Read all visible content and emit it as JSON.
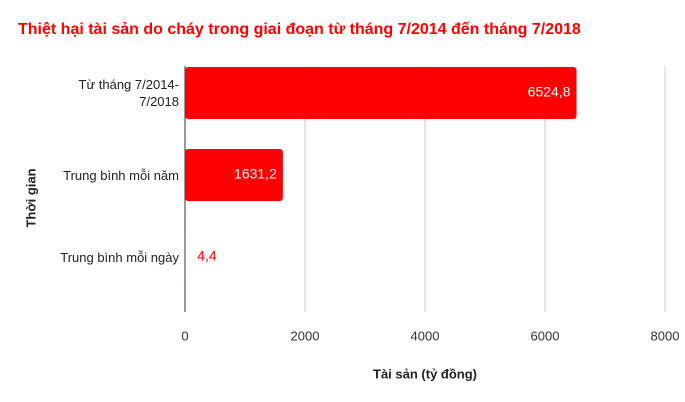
{
  "chart_data": {
    "type": "bar",
    "orientation": "horizontal",
    "title": "Thiệt hại tài sản do cháy trong giai đoạn từ tháng 7/2014 đến tháng 7/2018",
    "x_label": "Tài sản (tỷ đồng)",
    "y_label": "Thời gian",
    "categories": [
      "Từ tháng 7/2014-7/2018",
      "Trung bình mỗi năm",
      "Trung bình mỗi ngày"
    ],
    "values": [
      6524.8,
      1631.2,
      4.4
    ],
    "value_labels": [
      "6524,8",
      "1631,2",
      "4,4"
    ],
    "color": "#ff0000",
    "xlim": [
      0,
      8000
    ],
    "xticks": [
      0,
      2000,
      4000,
      6000,
      8000
    ],
    "grid": true
  }
}
